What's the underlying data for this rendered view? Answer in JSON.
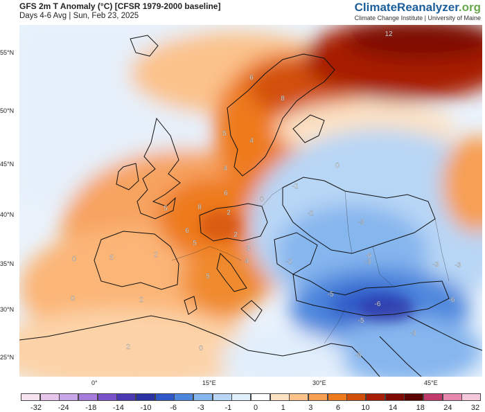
{
  "header": {
    "title": "GFS 2m T Anomaly (°C) [CFSR 1979-2000 baseline]",
    "subtitle": "Days 4-6 Avg | Sun, Feb 23, 2025"
  },
  "brand": {
    "name_part1": "ClimateReanalyzer",
    "name_part2": ".org",
    "tagline": "Climate Change Institute | University of Maine"
  },
  "axes": {
    "lat_labels": [
      "55°N",
      "50°N",
      "45°N",
      "40°N",
      "35°N",
      "30°N",
      "25°N"
    ],
    "lon_labels": [
      "0°",
      "15°E",
      "30°E",
      "45°E"
    ]
  },
  "colorbar": {
    "labels": [
      "-32",
      "-24",
      "-18",
      "-14",
      "-10",
      "-6",
      "-3",
      "-1",
      "0",
      "1",
      "3",
      "6",
      "10",
      "14",
      "18",
      "24",
      "32"
    ],
    "colors": [
      "#f7e4f1",
      "#e8c5ec",
      "#c8a6e8",
      "#a87cdd",
      "#7a52c9",
      "#4b39b3",
      "#2a32a4",
      "#2e58c7",
      "#4d87dd",
      "#86b6ee",
      "#b8d6f5",
      "#e1eefb",
      "#ffffff",
      "#fde2c4",
      "#fbc28b",
      "#f79f52",
      "#ee7a1c",
      "#d24f08",
      "#a71e04",
      "#7e0a02",
      "#5a0200",
      "#c23a6c",
      "#e88ab0",
      "#f6c8dc"
    ]
  },
  "contour_labels": [
    {
      "text": "12"
    },
    {
      "text": "8"
    },
    {
      "text": "6"
    },
    {
      "text": "5"
    },
    {
      "text": "4"
    },
    {
      "text": "4"
    },
    {
      "text": "6"
    },
    {
      "text": "8"
    },
    {
      "text": "5"
    },
    {
      "text": "6"
    },
    {
      "text": "5"
    },
    {
      "text": "5"
    },
    {
      "text": "2"
    },
    {
      "text": "0"
    },
    {
      "text": "-2"
    },
    {
      "text": "-2"
    },
    {
      "text": "-3"
    },
    {
      "text": "-2"
    },
    {
      "text": "-3"
    },
    {
      "text": "-3"
    },
    {
      "text": "-5"
    },
    {
      "text": "-6"
    },
    {
      "text": "-6"
    },
    {
      "text": "-5"
    },
    {
      "text": "-3"
    },
    {
      "text": "-5"
    },
    {
      "text": "0"
    },
    {
      "text": "5"
    },
    {
      "text": "2"
    },
    {
      "text": "0"
    },
    {
      "text": "2"
    },
    {
      "text": "0"
    },
    {
      "text": "3"
    },
    {
      "text": "4"
    },
    {
      "text": "2"
    },
    {
      "text": "0"
    },
    {
      "text": "-3"
    },
    {
      "text": "-6"
    },
    {
      "text": "2"
    }
  ],
  "colors": {
    "brand_blue": "#1b5e9a",
    "brand_green": "#6aa84f"
  }
}
